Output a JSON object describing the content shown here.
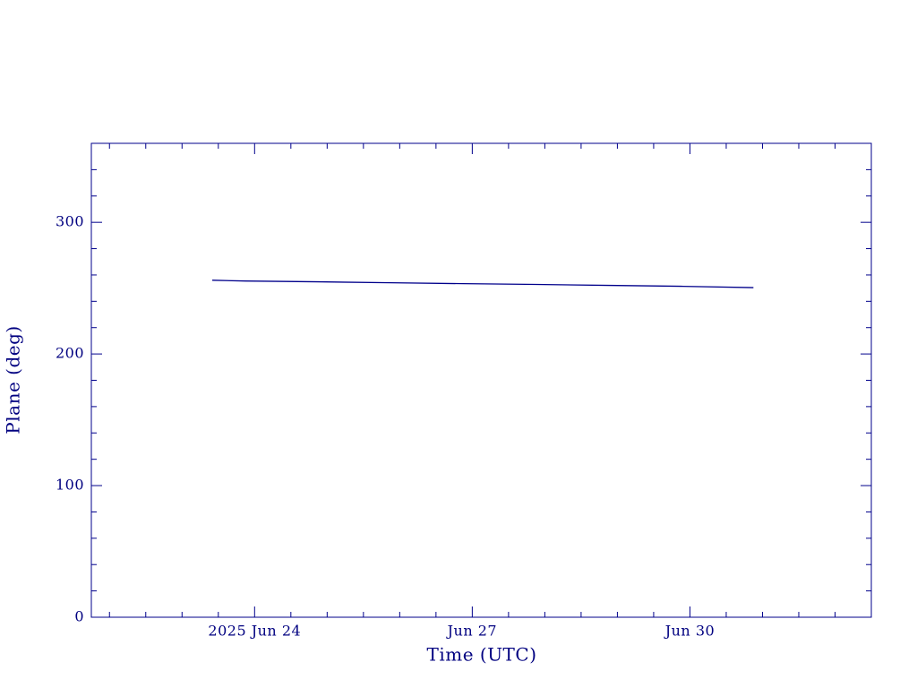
{
  "chart_data": {
    "type": "line",
    "x_label": "Time (UTC)",
    "y_label": "Plane (deg)",
    "x": [
      "2025-06-23T10:00",
      "2025-06-23T21:00",
      "2025-06-24T21:00",
      "2025-06-25T21:00",
      "2025-06-26T21:00",
      "2025-06-27T21:00",
      "2025-06-28T21:00",
      "2025-06-29T21:00",
      "2025-06-30T21:00"
    ],
    "series": [
      {
        "color": "#00008b",
        "values": [
          256,
          255.4,
          254.8,
          254.1,
          253.4,
          252.8,
          252.1,
          251.4,
          250.4
        ]
      }
    ],
    "xlim": [
      "2025-06-21T18:00",
      "2025-07-02T12:00"
    ],
    "xticks": [
      {
        "value": "2025-06-24T00:00",
        "label": "2025 Jun 24"
      },
      {
        "value": "2025-06-27T00:00",
        "label": "Jun 27"
      },
      {
        "value": "2025-06-30T00:00",
        "label": "Jun 30"
      }
    ],
    "xminor_ticks": [
      "2025-06-22T00:00",
      "2025-06-22T12:00",
      "2025-06-23T00:00",
      "2025-06-23T12:00",
      "2025-06-24T12:00",
      "2025-06-25T00:00",
      "2025-06-25T12:00",
      "2025-06-26T00:00",
      "2025-06-26T12:00",
      "2025-06-27T12:00",
      "2025-06-28T00:00",
      "2025-06-28T12:00",
      "2025-06-29T00:00",
      "2025-06-29T12:00",
      "2025-06-30T12:00",
      "2025-07-01T00:00",
      "2025-07-01T12:00",
      "2025-07-02T00:00"
    ],
    "ylim": [
      0,
      360
    ],
    "yticks": [
      0,
      100,
      200,
      300
    ],
    "yminor_ticks": [
      20,
      40,
      60,
      80,
      120,
      140,
      160,
      180,
      220,
      240,
      260,
      280,
      320,
      340
    ],
    "axis_color": "#00008b"
  }
}
